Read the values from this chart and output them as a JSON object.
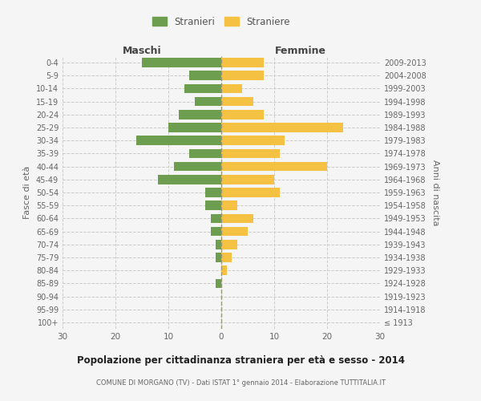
{
  "age_groups": [
    "100+",
    "95-99",
    "90-94",
    "85-89",
    "80-84",
    "75-79",
    "70-74",
    "65-69",
    "60-64",
    "55-59",
    "50-54",
    "45-49",
    "40-44",
    "35-39",
    "30-34",
    "25-29",
    "20-24",
    "15-19",
    "10-14",
    "5-9",
    "0-4"
  ],
  "birth_years": [
    "≤ 1913",
    "1914-1918",
    "1919-1923",
    "1924-1928",
    "1929-1933",
    "1934-1938",
    "1939-1943",
    "1944-1948",
    "1949-1953",
    "1954-1958",
    "1959-1963",
    "1964-1968",
    "1969-1973",
    "1974-1978",
    "1979-1983",
    "1984-1988",
    "1989-1993",
    "1994-1998",
    "1999-2003",
    "2004-2008",
    "2009-2013"
  ],
  "maschi": [
    0,
    0,
    0,
    1,
    0,
    1,
    1,
    2,
    2,
    3,
    3,
    12,
    9,
    6,
    16,
    10,
    8,
    5,
    7,
    6,
    15
  ],
  "femmine": [
    0,
    0,
    0,
    0,
    1,
    2,
    3,
    5,
    6,
    3,
    11,
    10,
    20,
    11,
    12,
    23,
    8,
    6,
    4,
    8,
    8
  ],
  "maschi_color": "#6d9e4f",
  "femmine_color": "#f5c142",
  "background_color": "#f5f5f5",
  "grid_color": "#cccccc",
  "title": "Popolazione per cittadinanza straniera per età e sesso - 2014",
  "subtitle1": "COMUNE DI MORGANO (TV) - Dati ISTAT 1° gennaio 2014 - Elaborazione TUTTITALIA.IT",
  "xlabel_left": "Maschi",
  "xlabel_right": "Femmine",
  "ylabel_left": "Fasce di età",
  "ylabel_right": "Anni di nascita",
  "xlim": 30,
  "legend_stranieri": "Stranieri",
  "legend_straniere": "Straniere"
}
